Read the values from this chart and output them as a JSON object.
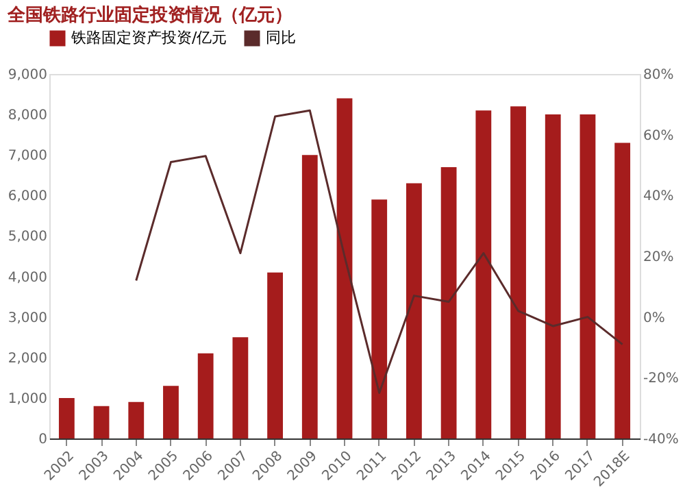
{
  "chart_data": {
    "type": "bar",
    "title": "全国铁路行业固定投资情况（亿元）",
    "categories": [
      "2002",
      "2003",
      "2004",
      "2005",
      "2006",
      "2007",
      "2008",
      "2009",
      "2010",
      "2011",
      "2012",
      "2013",
      "2014",
      "2015",
      "2016",
      "2017",
      "2018E"
    ],
    "series": [
      {
        "name": "铁路固定资产投资/亿元",
        "color": "#a51c1c",
        "values": [
          1000,
          800,
          900,
          1300,
          2100,
          2500,
          4100,
          7000,
          8400,
          5900,
          6300,
          6700,
          8100,
          8200,
          8000,
          8000,
          7300
        ]
      },
      {
        "name": "同比",
        "type": "line",
        "axis": "y2",
        "color": "#5b2b2b",
        "values": [
          null,
          null,
          12,
          51,
          53,
          21,
          66,
          68,
          20,
          -25,
          7,
          5,
          21,
          2,
          -3,
          0,
          -9
        ]
      }
    ],
    "ylim": [
      0,
      9000
    ],
    "yticks": [
      0,
      {
        "value": 1000,
        "label": "1,000"
      },
      {
        "value": 2000,
        "label": "2,000"
      },
      {
        "value": 3000,
        "label": "3,000"
      },
      {
        "value": 4000,
        "label": "4,000"
      },
      {
        "value": 5000,
        "label": "5,000"
      },
      {
        "value": 6000,
        "label": "6,000"
      },
      {
        "value": 7000,
        "label": "7,000"
      },
      {
        "value": 8000,
        "label": "8,000"
      },
      {
        "value": 9000,
        "label": "9,000"
      }
    ],
    "y2lim": [
      -40,
      80
    ],
    "y2ticks": [
      {
        "value": -40,
        "label": "-40%"
      },
      {
        "value": -20,
        "label": "-20%"
      },
      {
        "value": 0,
        "label": "0%"
      },
      {
        "value": 20,
        "label": "20%"
      },
      {
        "value": 40,
        "label": "40%"
      },
      {
        "value": 60,
        "label": "60%"
      },
      {
        "value": 80,
        "label": "80%"
      }
    ],
    "legend": "top",
    "grid": false
  }
}
